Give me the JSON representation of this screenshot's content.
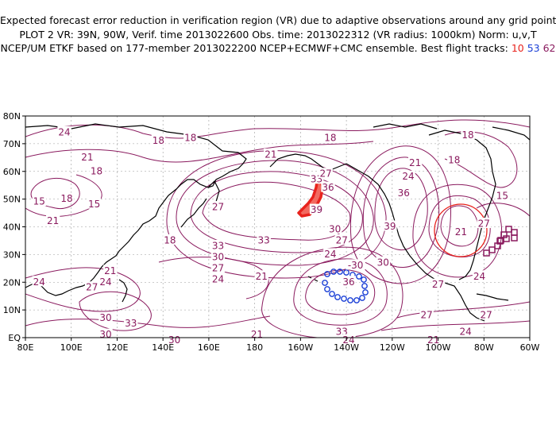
{
  "title": {
    "line1": "Expected forecast error reduction in verification region (VR) due to adaptive observations around any grid point.",
    "line2": "PLOT 2 VR: 39N, 90W, Verif. time 2013022600 Obs. time: 2013022312 (VR radius: 1000km) Norm: u,v,T",
    "line3_prefix": "NCEP/UM ETKF based on 177-member 2013022200 NCEP+ECMWF+CMC ensemble. Best flight tracks: ",
    "track_a": "10",
    "track_b": "53",
    "track_c": "62"
  },
  "colors": {
    "contour": "#8a1a5e",
    "track_a": "#e8231d",
    "track_b": "#1a3fd6",
    "track_c": "#8a1a5e"
  },
  "axes": {
    "x_ticks": [
      "80E",
      "100E",
      "120E",
      "140E",
      "160E",
      "180",
      "160W",
      "140W",
      "120W",
      "100W",
      "80W",
      "60W"
    ],
    "y_ticks": [
      "EQ",
      "10N",
      "20N",
      "30N",
      "40N",
      "50N",
      "60N",
      "70N",
      "80N"
    ]
  },
  "contour_labels": [
    {
      "text": "24",
      "lon": 97,
      "lat": 74
    },
    {
      "text": "18",
      "lon": 138,
      "lat": 71
    },
    {
      "text": "18",
      "lon": 152,
      "lat": 72
    },
    {
      "text": "18",
      "lon": 213,
      "lat": 72
    },
    {
      "text": "18",
      "lon": 273,
      "lat": 73
    },
    {
      "text": "21",
      "lon": 107,
      "lat": 65
    },
    {
      "text": "18",
      "lon": 111,
      "lat": 60
    },
    {
      "text": "21",
      "lon": 187,
      "lat": 66
    },
    {
      "text": "21",
      "lon": 250,
      "lat": 63
    },
    {
      "text": "18",
      "lon": 267,
      "lat": 64
    },
    {
      "text": "15",
      "lon": 86,
      "lat": 49
    },
    {
      "text": "18",
      "lon": 98,
      "lat": 50
    },
    {
      "text": "15",
      "lon": 110,
      "lat": 48
    },
    {
      "text": "21",
      "lon": 92,
      "lat": 42
    },
    {
      "text": "27",
      "lon": 164,
      "lat": 47
    },
    {
      "text": "18",
      "lon": 143,
      "lat": 35
    },
    {
      "text": "33",
      "lon": 164,
      "lat": 33
    },
    {
      "text": "30",
      "lon": 164,
      "lat": 29
    },
    {
      "text": "27",
      "lon": 164,
      "lat": 25
    },
    {
      "text": "24",
      "lon": 164,
      "lat": 21
    },
    {
      "text": "33",
      "lon": 184,
      "lat": 35
    },
    {
      "text": "30",
      "lon": 215,
      "lat": 39
    },
    {
      "text": "27",
      "lon": 218,
      "lat": 35
    },
    {
      "text": "24",
      "lon": 213,
      "lat": 30
    },
    {
      "text": "21",
      "lon": 183,
      "lat": 22
    },
    {
      "text": "39",
      "lon": 207,
      "lat": 46
    },
    {
      "text": "33",
      "lon": 207,
      "lat": 57
    },
    {
      "text": "36",
      "lon": 212,
      "lat": 54
    },
    {
      "text": "27",
      "lon": 211,
      "lat": 59
    },
    {
      "text": "24",
      "lon": 247,
      "lat": 58
    },
    {
      "text": "36",
      "lon": 245,
      "lat": 52
    },
    {
      "text": "39",
      "lon": 239,
      "lat": 40
    },
    {
      "text": "30",
      "lon": 236,
      "lat": 27
    },
    {
      "text": "21",
      "lon": 270,
      "lat": 38
    },
    {
      "text": "27",
      "lon": 280,
      "lat": 41
    },
    {
      "text": "15",
      "lon": 288,
      "lat": 51
    },
    {
      "text": "24",
      "lon": 278,
      "lat": 22
    },
    {
      "text": "27",
      "lon": 260,
      "lat": 19
    },
    {
      "text": "27",
      "lon": 255,
      "lat": 8
    },
    {
      "text": "27",
      "lon": 281,
      "lat": 8
    },
    {
      "text": "24",
      "lon": 272,
      "lat": 2
    },
    {
      "text": "21",
      "lon": 258,
      "lat": -1
    },
    {
      "text": "-30",
      "lon": 224,
      "lat": 26
    },
    {
      "text": "36",
      "lon": 221,
      "lat": 20
    },
    {
      "text": "33",
      "lon": 218,
      "lat": 2
    },
    {
      "text": "24",
      "lon": 221,
      "lat": -1
    },
    {
      "text": "21",
      "lon": 117,
      "lat": 24
    },
    {
      "text": "27",
      "lon": 109,
      "lat": 18
    },
    {
      "text": "24",
      "lon": 115,
      "lat": 20
    },
    {
      "text": "24",
      "lon": 86,
      "lat": 20
    },
    {
      "text": "30",
      "lon": 115,
      "lat": 7
    },
    {
      "text": "33",
      "lon": 126,
      "lat": 5
    },
    {
      "text": "30",
      "lon": 115,
      "lat": 1
    },
    {
      "text": "30",
      "lon": 145,
      "lat": -1
    },
    {
      "text": "21",
      "lon": 181,
      "lat": 1
    }
  ]
}
